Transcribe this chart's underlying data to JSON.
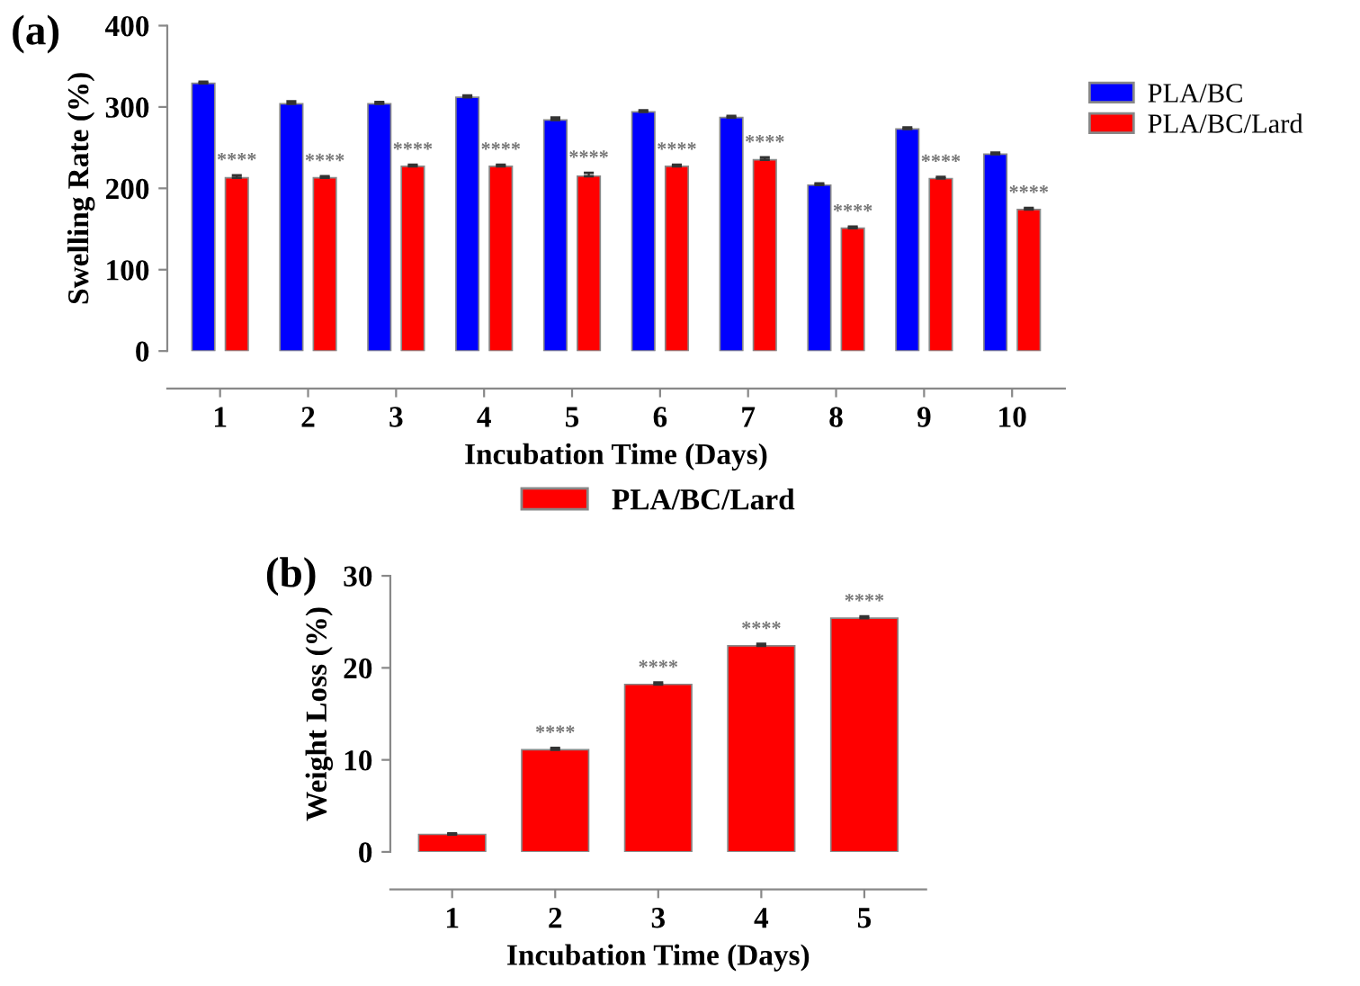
{
  "chart_data": [
    {
      "type": "bar",
      "title": "(a)",
      "xlabel": "Incubation Time (Days)",
      "ylabel": "Swelling Rate (%)",
      "categories": [
        "1",
        "2",
        "3",
        "4",
        "5",
        "6",
        "7",
        "8",
        "9",
        "10"
      ],
      "series": [
        {
          "name": "PLA/BC",
          "color": "#0000ff",
          "values": [
            329,
            304,
            304,
            312,
            284,
            294,
            287,
            204,
            273,
            242
          ],
          "errors": [
            2,
            3,
            2,
            2,
            3,
            2,
            2,
            2,
            2,
            2
          ]
        },
        {
          "name": "PLA/BC/Lard",
          "color": "#ff0000",
          "values": [
            213,
            213,
            227,
            227,
            215,
            227,
            235,
            151,
            212,
            174
          ],
          "errors": [
            3,
            2,
            2,
            2,
            4,
            2,
            3,
            2,
            2,
            2
          ]
        }
      ],
      "ylim": [
        0,
        400
      ],
      "yticks": [
        0,
        100,
        200,
        300,
        400
      ],
      "legend": "top right",
      "grid": false,
      "annotations": [
        {
          "text": "****",
          "x": "1",
          "y": 213
        },
        {
          "text": "****",
          "x": "2",
          "y": 213
        },
        {
          "text": "****",
          "x": "3",
          "y": 227
        },
        {
          "text": "****",
          "x": "4",
          "y": 227
        },
        {
          "text": "****",
          "x": "5",
          "y": 215
        },
        {
          "text": "****",
          "x": "6",
          "y": 227
        },
        {
          "text": "****",
          "x": "7",
          "y": 235
        },
        {
          "text": "****",
          "x": "8",
          "y": 151
        },
        {
          "text": "****",
          "x": "9",
          "y": 212
        },
        {
          "text": "****",
          "x": "10",
          "y": 174
        }
      ]
    },
    {
      "type": "bar",
      "title": "(b)",
      "xlabel": "Incubation Time (Days)",
      "ylabel": "Weight Loss (%)",
      "categories": [
        "1",
        "2",
        "3",
        "4",
        "5"
      ],
      "series": [
        {
          "name": "PLA/BC/Lard",
          "color": "#ff0000",
          "values": [
            1.9,
            11.1,
            18.2,
            22.4,
            25.4
          ],
          "errors": [
            0.1,
            0.2,
            0.2,
            0.2,
            0.2
          ]
        }
      ],
      "ylim": [
        0,
        30
      ],
      "yticks": [
        0,
        10,
        20,
        30
      ],
      "legend": "top",
      "grid": false,
      "annotations": [
        {
          "text": "****",
          "x": "2",
          "y": 11.1
        },
        {
          "text": "****",
          "x": "3",
          "y": 18.2
        },
        {
          "text": "****",
          "x": "4",
          "y": 22.4
        },
        {
          "text": "****",
          "x": "5",
          "y": 25.4
        }
      ]
    }
  ]
}
